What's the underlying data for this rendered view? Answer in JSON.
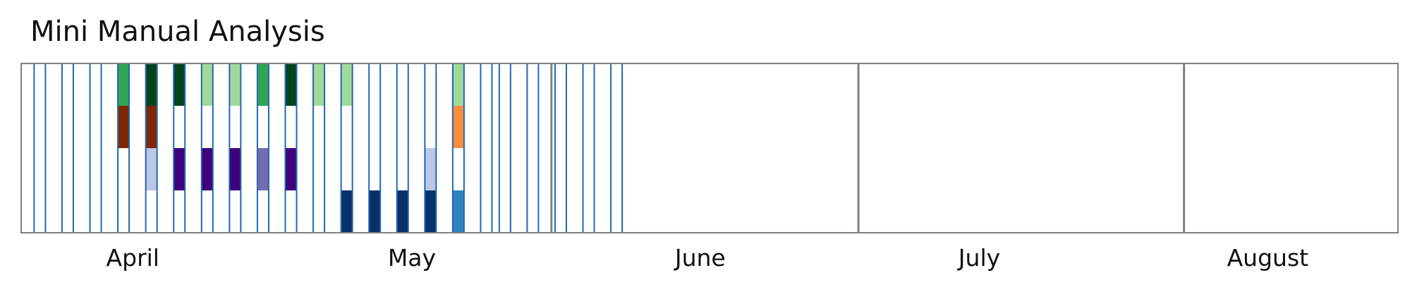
{
  "chart_data": {
    "type": "heatmap",
    "title": "Mini Manual Analysis",
    "x_axis": {
      "type": "date",
      "range": [
        "2024-03-20",
        "2024-08-15"
      ],
      "month_labels": [
        {
          "text": "April",
          "date": "2024-04-01"
        },
        {
          "text": "May",
          "date": "2024-05-01"
        },
        {
          "text": "June",
          "date": "2024-06-01"
        },
        {
          "text": "July",
          "date": "2024-07-01"
        },
        {
          "text": "August",
          "date": "2024-08-01"
        }
      ],
      "separators": [
        "2024-05-16",
        "2024-06-18",
        "2024-07-23"
      ]
    },
    "rows": 4,
    "days": [
      {
        "date": "2024-03-22",
        "cells": [
          null,
          null,
          null,
          null
        ]
      },
      {
        "date": "2024-03-25",
        "cells": [
          null,
          null,
          null,
          null
        ]
      },
      {
        "date": "2024-03-28",
        "cells": [
          null,
          null,
          null,
          null
        ]
      },
      {
        "date": "2024-03-31",
        "cells": [
          "#31a354",
          "#7f2704",
          null,
          null
        ]
      },
      {
        "date": "2024-04-03",
        "cells": [
          "#00441b",
          "#7f2704",
          "#bcc6e6",
          null
        ]
      },
      {
        "date": "2024-04-06",
        "cells": [
          "#00441b",
          null,
          "#3f007d",
          null
        ]
      },
      {
        "date": "2024-04-09",
        "cells": [
          "#a1d99b",
          null,
          "#3f007d",
          null
        ]
      },
      {
        "date": "2024-04-12",
        "cells": [
          "#a1d99b",
          null,
          "#3f007d",
          null
        ]
      },
      {
        "date": "2024-04-15",
        "cells": [
          "#31a354",
          null,
          "#756bb1",
          null
        ]
      },
      {
        "date": "2024-04-18",
        "cells": [
          "#00441b",
          null,
          "#3f007d",
          null
        ]
      },
      {
        "date": "2024-04-21",
        "cells": [
          "#a1d99b",
          null,
          null,
          null
        ]
      },
      {
        "date": "2024-04-24",
        "cells": [
          "#a1d99b",
          null,
          null,
          "#08306b"
        ]
      },
      {
        "date": "2024-04-27",
        "cells": [
          null,
          null,
          null,
          "#08306b"
        ]
      },
      {
        "date": "2024-04-30",
        "cells": [
          null,
          null,
          null,
          "#08306b"
        ]
      },
      {
        "date": "2024-05-03",
        "cells": [
          null,
          null,
          "#bcc6e6",
          "#08306b"
        ]
      },
      {
        "date": "2024-05-06",
        "cells": [
          "#a1d99b",
          "#fd8d3c",
          null,
          "#3182bd"
        ]
      },
      {
        "date": "2024-05-09",
        "cells": [
          null,
          null,
          null,
          null
        ]
      },
      {
        "date": "2024-05-11",
        "cells": [
          null,
          null,
          null,
          null
        ]
      },
      {
        "date": "2024-05-14",
        "cells": [
          null,
          null,
          null,
          null
        ]
      },
      {
        "date": "2024-05-17",
        "cells": [
          null,
          null,
          null,
          null
        ]
      },
      {
        "date": "2024-05-20",
        "cells": [
          null,
          null,
          null,
          null
        ]
      },
      {
        "date": "2024-05-23",
        "cells": [
          null,
          null,
          null,
          null
        ]
      }
    ],
    "colors": {
      "day_outline": "#1f68b0",
      "frame": "#808080",
      "separator": "#808080"
    },
    "grid": false,
    "legend": "none"
  }
}
